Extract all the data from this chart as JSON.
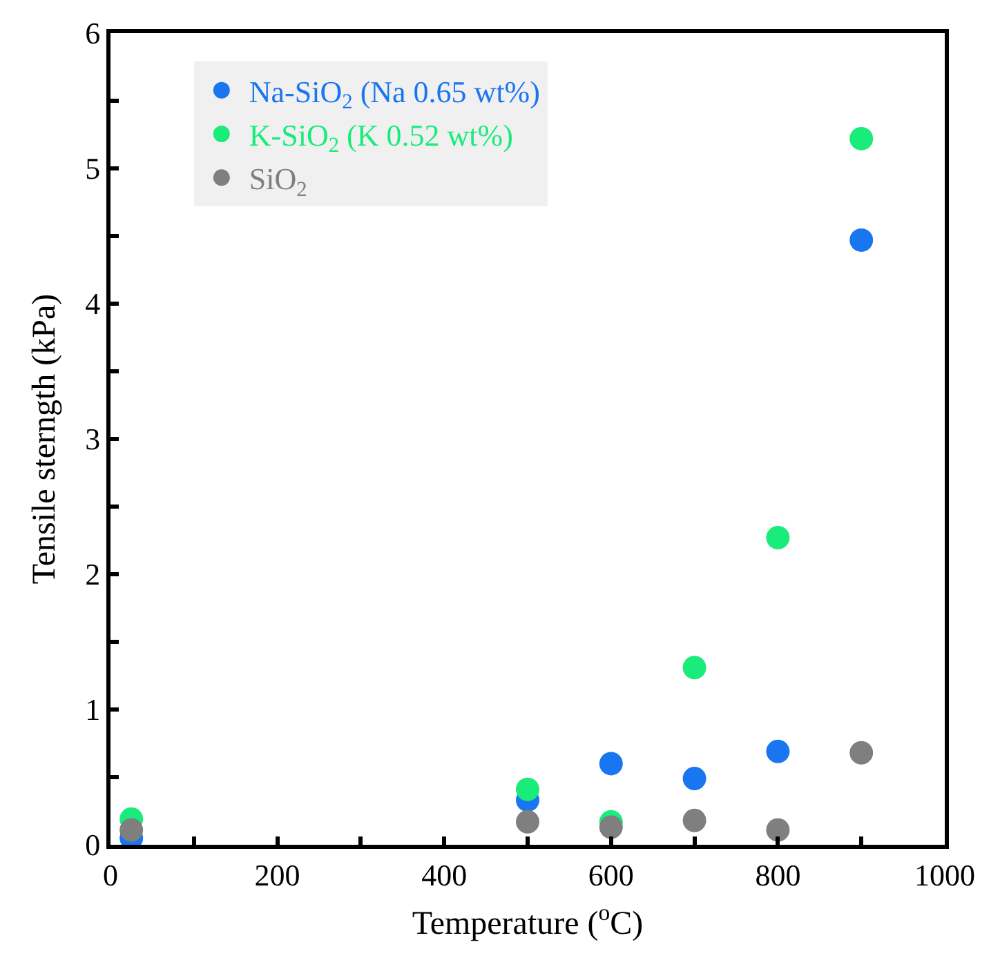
{
  "chart_data": {
    "type": "scatter",
    "xlabel": "Temperature ($^{o}$C)",
    "ylabel": "Tensile sterngth (kPa)",
    "x": [
      25,
      500,
      600,
      700,
      800,
      900
    ],
    "series": [
      {
        "name": "Na-SiO$_{2}$ (Na 0.65 wt%)",
        "color": "#1a75f0",
        "values": [
          0.05,
          0.33,
          0.6,
          0.49,
          0.69,
          4.47
        ]
      },
      {
        "name": "K-SiO$_{2}$ (K 0.52 wt%)",
        "color": "#19ec7a",
        "values": [
          0.19,
          0.41,
          0.17,
          1.31,
          2.27,
          5.22
        ]
      },
      {
        "name": "SiO$_{2}$",
        "color": "#7f7f7f",
        "values": [
          0.11,
          0.17,
          0.13,
          0.18,
          0.11,
          0.68
        ]
      }
    ],
    "xlim": [
      0,
      1000
    ],
    "xticks": [
      0,
      {
        "value": 100,
        "label": null
      },
      200,
      {
        "value": 300,
        "label": null
      },
      400,
      {
        "value": 500,
        "label": null
      },
      600,
      {
        "value": 700,
        "label": null
      },
      800,
      {
        "value": 900,
        "label": null
      },
      1000
    ],
    "ylim": [
      0,
      6
    ],
    "yticks": [
      0,
      {
        "value": 0.5,
        "label": null
      },
      1,
      {
        "value": 1.5,
        "label": null
      },
      2,
      {
        "value": 2.5,
        "label": null
      },
      3,
      {
        "value": 3.5,
        "label": null
      },
      4,
      {
        "value": 4.5,
        "label": null
      },
      5,
      {
        "value": 5.5,
        "label": null
      },
      6
    ],
    "marker": "circle",
    "legend": "top left"
  }
}
